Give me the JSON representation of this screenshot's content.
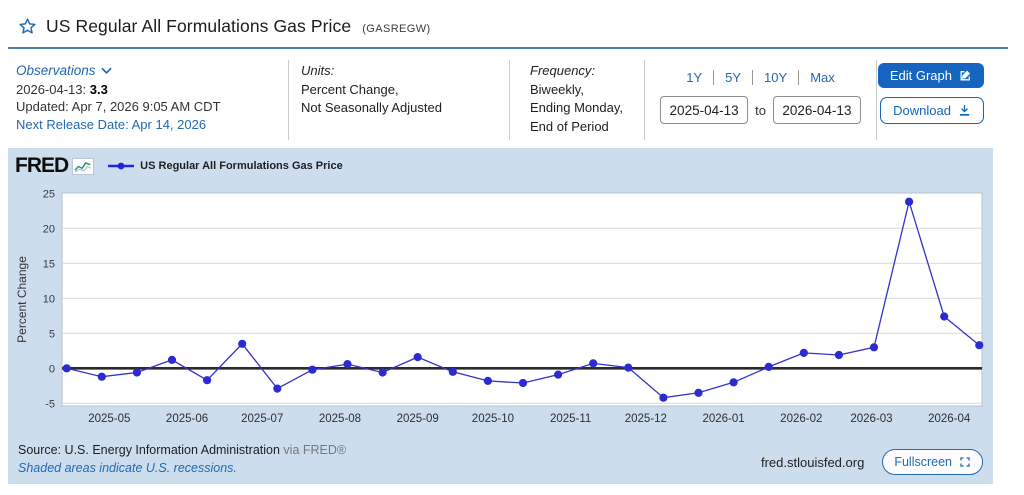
{
  "header": {
    "title": "US Regular All Formulations Gas Price",
    "series_id": "(GASREGW)"
  },
  "info": {
    "observations": {
      "label": "Observations",
      "latest_date": "2026-04-13:",
      "latest_value": "3.3",
      "updated": "Updated: Apr 7, 2026 9:05 AM CDT",
      "next_release": "Next Release Date: Apr 14, 2026"
    },
    "units": {
      "label": "Units:",
      "line1": "Percent Change,",
      "line2": "Not Seasonally Adjusted"
    },
    "frequency": {
      "label": "Frequency:",
      "line1": "Biweekly,",
      "line2": "Ending Monday,",
      "line3": "End of Period"
    },
    "range": {
      "buttons": [
        "1Y",
        "5Y",
        "10Y",
        "Max"
      ],
      "start": "2025-04-13",
      "to_label": "to",
      "end": "2026-04-13"
    },
    "actions": {
      "edit_label": "Edit Graph",
      "download_label": "Download"
    }
  },
  "chart": {
    "brand": "FRED",
    "legend": "US Regular All Formulations Gas Price",
    "footer": {
      "source": "Source: U.S. Energy Information Administration",
      "via": "via FRED®",
      "recessions": "Shaded areas indicate U.S. recessions.",
      "site": "fred.stlouisfed.org",
      "fullscreen_label": "Fullscreen"
    }
  },
  "colors": {
    "accent_blue": "#2268b2",
    "button_blue": "#1565c0",
    "panel_bg": "#ccdeee",
    "title_rule": "#4f7ca8"
  },
  "chart_data": {
    "type": "line",
    "title": "US Regular All Formulations Gas Price",
    "ylabel": "Percent Change",
    "ylim": [
      -5.3,
      25.6
    ],
    "yticks": [
      25,
      20,
      15,
      10,
      5,
      0,
      -5
    ],
    "xticks": [
      "2025-05",
      "2025-06",
      "2025-07",
      "2025-08",
      "2025-09",
      "2025-10",
      "2025-11",
      "2025-12",
      "2026-01",
      "2026-02",
      "2026-03",
      "2026-04"
    ],
    "x": [
      "2025-04-14",
      "2025-04-28",
      "2025-05-12",
      "2025-05-26",
      "2025-06-09",
      "2025-06-23",
      "2025-07-07",
      "2025-07-21",
      "2025-08-04",
      "2025-08-18",
      "2025-09-01",
      "2025-09-15",
      "2025-09-29",
      "2025-10-13",
      "2025-10-27",
      "2025-11-10",
      "2025-11-24",
      "2025-12-08",
      "2025-12-22",
      "2026-01-05",
      "2026-01-19",
      "2026-02-02",
      "2026-02-16",
      "2026-03-02",
      "2026-03-16",
      "2026-03-30",
      "2026-04-13"
    ],
    "values": [
      0.0,
      -1.2,
      -0.6,
      1.2,
      -1.7,
      3.5,
      -2.9,
      -0.2,
      0.6,
      -0.6,
      1.6,
      -0.5,
      -1.8,
      -2.1,
      -0.9,
      0.7,
      0.1,
      -4.2,
      -3.5,
      -2.0,
      0.2,
      2.2,
      1.9,
      3.0,
      23.8,
      7.4,
      3.3
    ],
    "grid": true,
    "zero_line": true,
    "legend_position": "top-left",
    "line_color": "#3333cc",
    "point_color": "#2b2bd0",
    "background": "#ffffff"
  }
}
